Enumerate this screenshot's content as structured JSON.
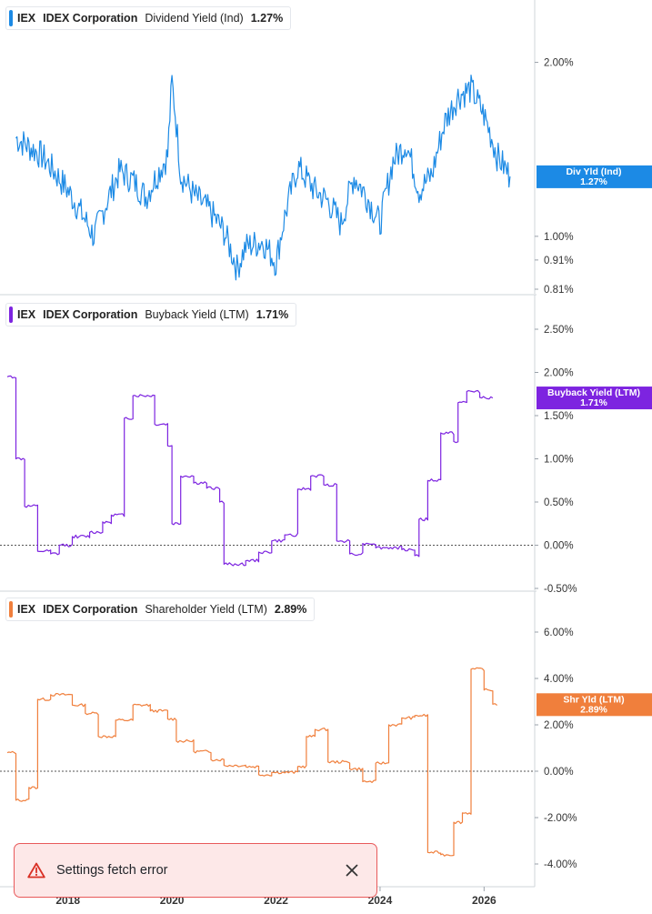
{
  "colors": {
    "dividend": "#1c8ae5",
    "buyback": "#7d24e0",
    "shareholder": "#f07f3c",
    "axis_text": "#333333",
    "grid": "#dddddd",
    "toast_bg": "#fde8e8",
    "toast_border": "#e8595a",
    "toast_icon": "#d93025"
  },
  "toast": {
    "message": "Settings fetch error",
    "icon": "warning-triangle-icon",
    "close_icon": "close-icon"
  },
  "chart_data": [
    {
      "type": "line",
      "ticker": "IEX",
      "company": "IDEX Corporation",
      "metric": "Dividend Yield (Ind)",
      "current": "1.27%",
      "tag_lines": [
        "Div Yld (Ind)",
        "1.27%"
      ],
      "y_ticks": [
        "2.00%",
        "1.00%",
        "0.91%",
        "0.81%"
      ],
      "y_scale": "log",
      "ylim": [
        0.81,
        2.3
      ],
      "x": [
        "2017-01",
        "2017-07",
        "2018-01",
        "2018-07",
        "2019-01",
        "2019-04",
        "2019-07",
        "2019-12",
        "2020-01",
        "2020-03",
        "2020-06",
        "2020-10",
        "2021-01",
        "2021-04",
        "2021-06",
        "2021-10",
        "2022-01",
        "2022-03",
        "2022-06",
        "2022-10",
        "2023-01",
        "2023-04",
        "2023-07",
        "2023-10",
        "2024-01",
        "2024-04",
        "2024-07",
        "2024-10",
        "2025-01",
        "2025-04",
        "2025-07",
        "2025-10",
        "2026-01",
        "2026-04",
        "2026-07"
      ],
      "values": [
        1.48,
        1.38,
        1.2,
        1.0,
        1.3,
        1.25,
        1.17,
        1.38,
        1.85,
        1.28,
        1.18,
        1.1,
        1.02,
        0.88,
        0.96,
        0.98,
        0.9,
        1.08,
        1.32,
        1.2,
        1.15,
        1.05,
        1.27,
        1.17,
        1.05,
        1.35,
        1.45,
        1.2,
        1.28,
        1.58,
        1.75,
        1.8,
        1.62,
        1.38,
        1.27
      ]
    },
    {
      "type": "line",
      "ticker": "IEX",
      "company": "IDEX Corporation",
      "metric": "Buyback Yield (LTM)",
      "current": "1.71%",
      "tag_lines": [
        "Buyback Yield (LTM)",
        "1.71%"
      ],
      "y_ticks": [
        "2.50%",
        "2.00%",
        "1.50%",
        "1.00%",
        "0.50%",
        "0.00%",
        "-0.50%"
      ],
      "ylim": [
        -0.5,
        2.5
      ],
      "zero_line": true,
      "steps": [
        [
          "2016-11",
          1.95
        ],
        [
          "2017-01",
          1.0
        ],
        [
          "2017-03",
          0.45
        ],
        [
          "2017-06",
          -0.07
        ],
        [
          "2017-09",
          -0.1
        ],
        [
          "2017-11",
          0.0
        ],
        [
          "2018-02",
          0.1
        ],
        [
          "2018-06",
          0.15
        ],
        [
          "2018-09",
          0.27
        ],
        [
          "2018-11",
          0.35
        ],
        [
          "2019-02",
          1.47
        ],
        [
          "2019-04",
          1.73
        ],
        [
          "2019-09",
          1.4
        ],
        [
          "2019-12",
          1.15
        ],
        [
          "2020-01",
          0.25
        ],
        [
          "2020-03",
          0.8
        ],
        [
          "2020-06",
          0.72
        ],
        [
          "2020-09",
          0.66
        ],
        [
          "2020-12",
          0.5
        ],
        [
          "2021-01",
          -0.22
        ],
        [
          "2021-06",
          -0.18
        ],
        [
          "2021-09",
          -0.08
        ],
        [
          "2021-12",
          0.05
        ],
        [
          "2022-03",
          0.12
        ],
        [
          "2022-06",
          0.65
        ],
        [
          "2022-09",
          0.8
        ],
        [
          "2022-12",
          0.7
        ],
        [
          "2023-03",
          0.05
        ],
        [
          "2023-06",
          -0.1
        ],
        [
          "2023-09",
          0.02
        ],
        [
          "2023-12",
          -0.03
        ],
        [
          "2024-06",
          -0.05
        ],
        [
          "2024-09",
          -0.12
        ],
        [
          "2024-10",
          0.3
        ],
        [
          "2024-12",
          0.75
        ],
        [
          "2025-03",
          1.3
        ],
        [
          "2025-06",
          1.2
        ],
        [
          "2025-07",
          1.65
        ],
        [
          "2025-09",
          1.78
        ],
        [
          "2025-12",
          1.71
        ]
      ],
      "x_end": "2026-03"
    },
    {
      "type": "line",
      "ticker": "IEX",
      "company": "IDEX Corporation",
      "metric": "Shareholder Yield (LTM)",
      "current": "2.89%",
      "tag_lines": [
        "Shr Yld (LTM)",
        "2.89%"
      ],
      "y_ticks": [
        "6.00%",
        "4.00%",
        "2.00%",
        "0.00%",
        "-2.00%",
        "-4.00%"
      ],
      "ylim": [
        -4.0,
        6.0
      ],
      "zero_line": true,
      "steps": [
        [
          "2016-11",
          0.8
        ],
        [
          "2017-01",
          -1.25
        ],
        [
          "2017-04",
          -0.7
        ],
        [
          "2017-06",
          3.1
        ],
        [
          "2017-09",
          3.3
        ],
        [
          "2018-02",
          2.85
        ],
        [
          "2018-05",
          2.5
        ],
        [
          "2018-08",
          1.5
        ],
        [
          "2018-12",
          2.2
        ],
        [
          "2019-04",
          2.85
        ],
        [
          "2019-08",
          2.6
        ],
        [
          "2019-12",
          2.25
        ],
        [
          "2020-02",
          1.3
        ],
        [
          "2020-06",
          0.85
        ],
        [
          "2020-10",
          0.5
        ],
        [
          "2021-01",
          0.25
        ],
        [
          "2021-06",
          0.2
        ],
        [
          "2021-09",
          -0.15
        ],
        [
          "2021-12",
          -0.05
        ],
        [
          "2022-06",
          0.2
        ],
        [
          "2022-08",
          1.5
        ],
        [
          "2022-10",
          1.8
        ],
        [
          "2023-01",
          0.4
        ],
        [
          "2023-06",
          0.1
        ],
        [
          "2023-09",
          -0.45
        ],
        [
          "2023-12",
          0.35
        ],
        [
          "2024-03",
          2.0
        ],
        [
          "2024-06",
          2.3
        ],
        [
          "2024-09",
          2.4
        ],
        [
          "2024-12",
          -3.5
        ],
        [
          "2025-03",
          -3.6
        ],
        [
          "2025-06",
          -2.2
        ],
        [
          "2025-08",
          -1.8
        ],
        [
          "2025-10",
          4.4
        ],
        [
          "2026-01",
          3.5
        ],
        [
          "2026-03",
          2.89
        ]
      ],
      "x_end": "2026-04"
    }
  ],
  "x_axis": {
    "labels": [
      "2018",
      "2020",
      "2022",
      "2024",
      "2026"
    ],
    "range": [
      "2016-11",
      "2026-12"
    ]
  }
}
